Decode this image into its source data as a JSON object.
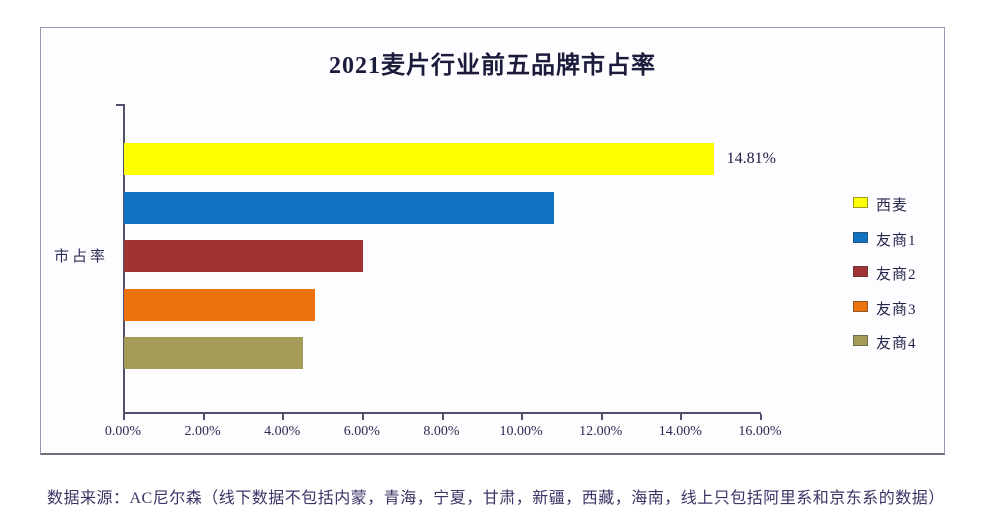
{
  "source_note": "数据来源：AC尼尔森（线下数据不包括内蒙，青海，宁夏，甘肃，新疆，西藏，海南，线上只包括阿里系和京东系的数据）",
  "chart_data": {
    "type": "bar",
    "orientation": "horizontal",
    "title": "2021麦片行业前五品牌市占率",
    "xlabel": "",
    "ylabel": "市占率",
    "categories": [
      "西麦",
      "友商1",
      "友商2",
      "友商3",
      "友商4"
    ],
    "values": [
      14.81,
      10.8,
      6.0,
      4.8,
      4.5
    ],
    "colors": [
      "#feff00",
      "#1272c2",
      "#a03432",
      "#ec720e",
      "#a59b58"
    ],
    "data_labels": [
      "14.81%",
      "",
      "",
      "",
      ""
    ],
    "x_ticks": [
      "0.00%",
      "2.00%",
      "4.00%",
      "6.00%",
      "8.00%",
      "10.00%",
      "12.00%",
      "14.00%",
      "16.00%"
    ],
    "xlim": [
      0,
      16
    ],
    "grid": false,
    "legend_position": "right",
    "legend": [
      {
        "label": "西麦",
        "color": "#feff00"
      },
      {
        "label": "友商1",
        "color": "#1272c2"
      },
      {
        "label": "友商2",
        "color": "#a03432"
      },
      {
        "label": "友商3",
        "color": "#ec720e"
      },
      {
        "label": "友商4",
        "color": "#a59b58"
      }
    ]
  }
}
